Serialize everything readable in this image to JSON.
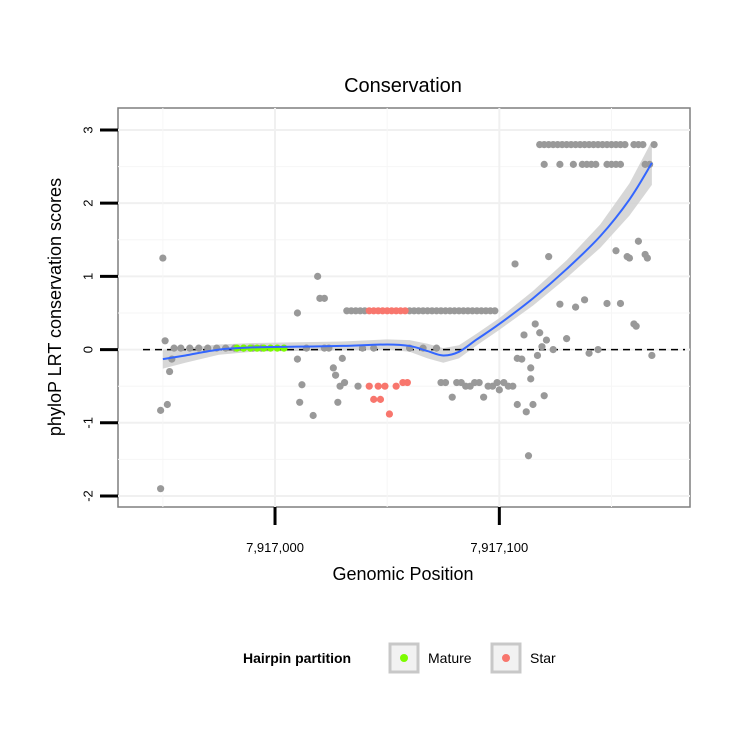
{
  "chart_data": {
    "type": "scatter",
    "title": "Conservation",
    "xlabel": "Genomic Position",
    "ylabel": "phyloP LRT conservation scores",
    "xlim": [
      7916930,
      7917185
    ],
    "ylim": [
      -2.15,
      3.3
    ],
    "x_ticks": [
      7917000,
      7917100
    ],
    "x_tick_labels": [
      "7,917,000",
      "7,917,100"
    ],
    "y_ticks": [
      -2,
      -1,
      0,
      1,
      2,
      3
    ],
    "y_tick_labels": [
      "-2",
      "-1",
      "0",
      "1",
      "2",
      "3"
    ],
    "reference_line": {
      "y": 0,
      "style": "dashed"
    },
    "legend": {
      "title": "Hairpin partition",
      "position": "bottom",
      "entries": [
        {
          "label": "Mature",
          "color": "#7CFC00"
        },
        {
          "label": "Star",
          "color": "#F8766D"
        }
      ]
    },
    "colors": {
      "other": "#999999",
      "Mature": "#7CFC00",
      "Star": "#F8766D",
      "smooth": "#3366FF",
      "ribbon": "#d0d0d0"
    },
    "series": [
      {
        "name": "Other",
        "points": [
          [
            7916949,
            -1.9
          ],
          [
            7916949,
            -0.83
          ],
          [
            7916950,
            1.25
          ],
          [
            7916951,
            0.12
          ],
          [
            7916952,
            -0.75
          ],
          [
            7916953,
            -0.3
          ],
          [
            7916954,
            -0.13
          ],
          [
            7916955,
            0.02
          ],
          [
            7916958,
            0.02
          ],
          [
            7916962,
            0.02
          ],
          [
            7916966,
            0.02
          ],
          [
            7916970,
            0.02
          ],
          [
            7916974,
            0.02
          ],
          [
            7916978,
            0.02
          ],
          [
            7916982,
            0.02
          ],
          [
            7916986,
            0.02
          ],
          [
            7916990,
            0.02
          ],
          [
            7916994,
            0.02
          ],
          [
            7917010,
            0.5
          ],
          [
            7917010,
            -0.13
          ],
          [
            7917011,
            -0.72
          ],
          [
            7917012,
            -0.48
          ],
          [
            7917014,
            0.02
          ],
          [
            7917017,
            -0.9
          ],
          [
            7917019,
            1.0
          ],
          [
            7917020,
            0.7
          ],
          [
            7917022,
            0.7
          ],
          [
            7917022,
            0.02
          ],
          [
            7917024,
            0.02
          ],
          [
            7917026,
            -0.25
          ],
          [
            7917027,
            -0.35
          ],
          [
            7917028,
            -0.72
          ],
          [
            7917029,
            -0.5
          ],
          [
            7917030,
            -0.12
          ],
          [
            7917031,
            -0.45
          ],
          [
            7917032,
            0.53
          ],
          [
            7917034,
            0.53
          ],
          [
            7917036,
            0.53
          ],
          [
            7917038,
            0.53
          ],
          [
            7917040,
            0.53
          ],
          [
            7917037,
            -0.5
          ],
          [
            7917039,
            0.02
          ],
          [
            7917044,
            0.02
          ],
          [
            7917060,
            0.53
          ],
          [
            7917062,
            0.53
          ],
          [
            7917064,
            0.53
          ],
          [
            7917066,
            0.53
          ],
          [
            7917068,
            0.53
          ],
          [
            7917070,
            0.53
          ],
          [
            7917072,
            0.53
          ],
          [
            7917074,
            0.53
          ],
          [
            7917076,
            0.53
          ],
          [
            7917078,
            0.53
          ],
          [
            7917080,
            0.53
          ],
          [
            7917082,
            0.53
          ],
          [
            7917084,
            0.53
          ],
          [
            7917086,
            0.53
          ],
          [
            7917088,
            0.53
          ],
          [
            7917090,
            0.53
          ],
          [
            7917092,
            0.53
          ],
          [
            7917094,
            0.53
          ],
          [
            7917096,
            0.53
          ],
          [
            7917098,
            0.53
          ],
          [
            7917060,
            0.02
          ],
          [
            7917066,
            0.02
          ],
          [
            7917072,
            0.02
          ],
          [
            7917074,
            -0.45
          ],
          [
            7917076,
            -0.45
          ],
          [
            7917079,
            -0.65
          ],
          [
            7917081,
            -0.45
          ],
          [
            7917083,
            -0.45
          ],
          [
            7917085,
            -0.5
          ],
          [
            7917087,
            -0.5
          ],
          [
            7917089,
            -0.45
          ],
          [
            7917091,
            -0.45
          ],
          [
            7917093,
            -0.65
          ],
          [
            7917095,
            -0.5
          ],
          [
            7917097,
            -0.5
          ],
          [
            7917099,
            -0.45
          ],
          [
            7917100,
            -0.55
          ],
          [
            7917102,
            -0.45
          ],
          [
            7917104,
            -0.5
          ],
          [
            7917106,
            -0.5
          ],
          [
            7917107,
            1.17
          ],
          [
            7917108,
            -0.75
          ],
          [
            7917108,
            -0.12
          ],
          [
            7917110,
            -0.13
          ],
          [
            7917111,
            0.2
          ],
          [
            7917112,
            -0.85
          ],
          [
            7917113,
            -1.45
          ],
          [
            7917114,
            -0.4
          ],
          [
            7917114,
            -0.25
          ],
          [
            7917115,
            -0.75
          ],
          [
            7917116,
            0.35
          ],
          [
            7917117,
            -0.08
          ],
          [
            7917118,
            0.23
          ],
          [
            7917119,
            0.04
          ],
          [
            7917120,
            -0.63
          ],
          [
            7917121,
            0.13
          ],
          [
            7917122,
            1.27
          ],
          [
            7917124,
            0.0
          ],
          [
            7917127,
            0.62
          ],
          [
            7917130,
            0.15
          ],
          [
            7917134,
            0.58
          ],
          [
            7917138,
            0.68
          ],
          [
            7917140,
            -0.05
          ],
          [
            7917144,
            0.0
          ],
          [
            7917148,
            0.63
          ],
          [
            7917152,
            1.35
          ],
          [
            7917154,
            0.63
          ],
          [
            7917157,
            1.27
          ],
          [
            7917158,
            1.25
          ],
          [
            7917160,
            0.35
          ],
          [
            7917161,
            0.32
          ],
          [
            7917162,
            1.48
          ],
          [
            7917165,
            1.3
          ],
          [
            7917166,
            1.25
          ],
          [
            7917168,
            -0.08
          ],
          [
            7917118,
            2.8
          ],
          [
            7917120,
            2.8
          ],
          [
            7917122,
            2.8
          ],
          [
            7917124,
            2.8
          ],
          [
            7917126,
            2.8
          ],
          [
            7917128,
            2.8
          ],
          [
            7917130,
            2.8
          ],
          [
            7917132,
            2.8
          ],
          [
            7917134,
            2.8
          ],
          [
            7917136,
            2.8
          ],
          [
            7917138,
            2.8
          ],
          [
            7917140,
            2.8
          ],
          [
            7917142,
            2.8
          ],
          [
            7917144,
            2.8
          ],
          [
            7917146,
            2.8
          ],
          [
            7917148,
            2.8
          ],
          [
            7917150,
            2.8
          ],
          [
            7917152,
            2.8
          ],
          [
            7917154,
            2.8
          ],
          [
            7917156,
            2.8
          ],
          [
            7917160,
            2.8
          ],
          [
            7917162,
            2.8
          ],
          [
            7917164,
            2.8
          ],
          [
            7917169,
            2.8
          ],
          [
            7917120,
            2.53
          ],
          [
            7917127,
            2.53
          ],
          [
            7917133,
            2.53
          ],
          [
            7917137,
            2.53
          ],
          [
            7917139,
            2.53
          ],
          [
            7917141,
            2.53
          ],
          [
            7917143,
            2.53
          ],
          [
            7917148,
            2.53
          ],
          [
            7917150,
            2.53
          ],
          [
            7917152,
            2.53
          ],
          [
            7917154,
            2.53
          ],
          [
            7917165,
            2.53
          ],
          [
            7917167,
            2.53
          ]
        ]
      },
      {
        "name": "Mature",
        "points": [
          [
            7916983,
            0.02
          ],
          [
            7916986,
            0.02
          ],
          [
            7916989,
            0.02
          ],
          [
            7916992,
            0.02
          ],
          [
            7916995,
            0.02
          ],
          [
            7916998,
            0.02
          ],
          [
            7917001,
            0.02
          ],
          [
            7917004,
            0.02
          ]
        ]
      },
      {
        "name": "Star",
        "points": [
          [
            7917042,
            0.53
          ],
          [
            7917044,
            0.53
          ],
          [
            7917046,
            0.53
          ],
          [
            7917048,
            0.53
          ],
          [
            7917050,
            0.53
          ],
          [
            7917052,
            0.53
          ],
          [
            7917054,
            0.53
          ],
          [
            7917056,
            0.53
          ],
          [
            7917058,
            0.53
          ],
          [
            7917042,
            -0.5
          ],
          [
            7917044,
            -0.68
          ],
          [
            7917046,
            -0.5
          ],
          [
            7917047,
            -0.68
          ],
          [
            7917049,
            -0.5
          ],
          [
            7917051,
            -0.88
          ],
          [
            7917054,
            -0.5
          ],
          [
            7917057,
            -0.45
          ],
          [
            7917059,
            -0.45
          ]
        ]
      }
    ],
    "smooth_line": [
      [
        7916950,
        -0.13
      ],
      [
        7916960,
        -0.08
      ],
      [
        7916975,
        -0.0
      ],
      [
        7916990,
        0.03
      ],
      [
        7917010,
        0.04
      ],
      [
        7917030,
        0.05
      ],
      [
        7917050,
        0.07
      ],
      [
        7917060,
        0.05
      ],
      [
        7917068,
        -0.02
      ],
      [
        7917075,
        -0.08
      ],
      [
        7917082,
        -0.03
      ],
      [
        7917090,
        0.14
      ],
      [
        7917100,
        0.35
      ],
      [
        7917115,
        0.7
      ],
      [
        7917130,
        1.1
      ],
      [
        7917145,
        1.55
      ],
      [
        7917158,
        2.05
      ],
      [
        7917168,
        2.55
      ]
    ],
    "smooth_ci_halfwidth": [
      0.13,
      0.1,
      0.07,
      0.06,
      0.06,
      0.06,
      0.07,
      0.08,
      0.1,
      0.1,
      0.09,
      0.08,
      0.08,
      0.1,
      0.12,
      0.16,
      0.22,
      0.3
    ]
  }
}
